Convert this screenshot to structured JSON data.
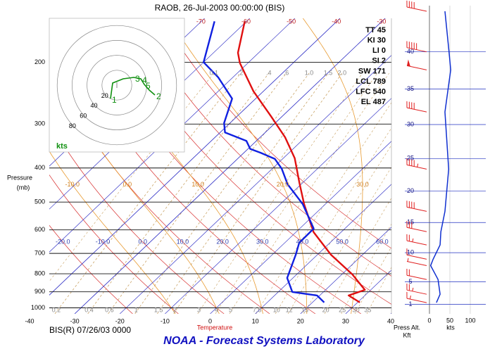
{
  "title": "RAOB, 26-Jul-2003 00:00:00 (BIS)",
  "station": "BIS(R) 07/26/03 0000",
  "footer": "NOAA - Forecast Systems Laboratory",
  "indices": [
    "TT 45",
    "KI 30",
    "LI 0",
    "SI 2",
    "SW 171",
    "LCL 789",
    "LFC 540",
    "EL 487"
  ],
  "chart_data": {
    "type": "skewt",
    "ylabel": "Pressure",
    "ylabel_units": "(mb)",
    "xlabel": "Temperature",
    "ylim": [
      1040,
      150
    ],
    "yticks": [
      200,
      300,
      400,
      500,
      600,
      700,
      800,
      900,
      1000
    ],
    "xlim": [
      -40,
      40
    ],
    "xticks": [
      -40,
      -30,
      -20,
      -10,
      0,
      10,
      20,
      30,
      40
    ],
    "top_isotherm_ticks": [
      -70,
      -60,
      -50,
      -40,
      -30
    ],
    "dry_adiabat_labels": [
      {
        "value": -20,
        "label": "-20.0"
      },
      {
        "value": -10,
        "label": "-10.0"
      },
      {
        "value": 0,
        "label": "0.0"
      },
      {
        "value": 10,
        "label": "10.0"
      },
      {
        "value": 20,
        "label": "20.0"
      },
      {
        "value": 30,
        "label": "30.0"
      },
      {
        "value": 40,
        "label": "40.0"
      },
      {
        "value": 50,
        "label": "50.0"
      },
      {
        "value": 60,
        "label": "60.0"
      }
    ],
    "moist_adiabat_labels": [
      {
        "value": -10,
        "label": "-10.0"
      },
      {
        "value": 0,
        "label": "0.0"
      },
      {
        "value": 10,
        "label": "10.0"
      },
      {
        "value": 20,
        "label": "20.0"
      },
      {
        "value": 30,
        "label": "30.0"
      }
    ],
    "mixing_ratio_top": [
      0.1,
      {
        "value": 0.2,
        "label": ".2"
      },
      {
        "value": 0.4,
        "label": ".4"
      },
      {
        "value": 0.6,
        "label": ".6"
      },
      {
        "value": 1,
        "label": "1.0"
      },
      1.5,
      {
        "value": 2,
        "label": "2.0"
      }
    ],
    "mixing_ratio_bottom": [
      0.2,
      0.4,
      0.6,
      1,
      1.5,
      2,
      3,
      4,
      5,
      7.5,
      10,
      12,
      15,
      20,
      25,
      30,
      35
    ],
    "temperature": {
      "color": "#e01010",
      "pressure": [
        965,
        922,
        889,
        803,
        706,
        609,
        507,
        441,
        375,
        327,
        285,
        242,
        201,
        188,
        153
      ],
      "values": [
        30.5,
        26.4,
        28.7,
        22.3,
        13,
        3.9,
        -4.7,
        -10.7,
        -17.5,
        -24.5,
        -32.5,
        -42.2,
        -51.8,
        -54.6,
        -60.4
      ]
    },
    "dewpoint": {
      "color": "#1020e0",
      "pressure": [
        965,
        922,
        901,
        822,
        706,
        653,
        595,
        507,
        445,
        402,
        377,
        362,
        353,
        335,
        317,
        298,
        254,
        221,
        200,
        153
      ],
      "values": [
        22.6,
        19.4,
        13.1,
        8.7,
        5.2,
        3.2,
        3.1,
        -5,
        -13,
        -17.9,
        -21.7,
        -26.3,
        -29.5,
        -32.2,
        -38.9,
        -41.3,
        -45.2,
        -53.2,
        -60,
        -67.1
      ]
    }
  },
  "hodograph": {
    "rings": [
      20,
      40,
      60,
      80
    ],
    "units": "kts",
    "color": "#109010",
    "u": [
      -8.5,
      -5.7,
      8.5,
      22.6,
      32.1,
      36.8,
      43.4,
      50.9
    ],
    "v": [
      -17.9,
      2.8,
      8.5,
      10.4,
      8.5,
      0.9,
      -6.6,
      -13.2
    ],
    "labels": [
      1,
      null,
      null,
      3,
      4,
      5,
      null,
      2
    ]
  },
  "wind_profile": {
    "alt_label": "Press Alt.",
    "alt_units": "Kft",
    "speed_label": "kts",
    "alt_ticks": [
      1,
      5,
      10,
      15,
      20,
      25,
      30,
      35,
      40
    ],
    "xlim": [
      0,
      100
    ],
    "xticks": [
      0,
      50,
      100
    ],
    "color": "#1030d0",
    "barb_color": "#e02020",
    "alt": [
      1.3,
      2.8,
      5.4,
      7.8,
      8.9,
      11.3,
      13.5,
      16.8,
      23.4,
      31.8,
      37.6,
      40,
      45.2
    ],
    "speed": [
      17,
      26,
      21,
      3,
      9,
      26,
      28,
      38,
      47,
      38,
      52,
      48,
      38
    ]
  }
}
